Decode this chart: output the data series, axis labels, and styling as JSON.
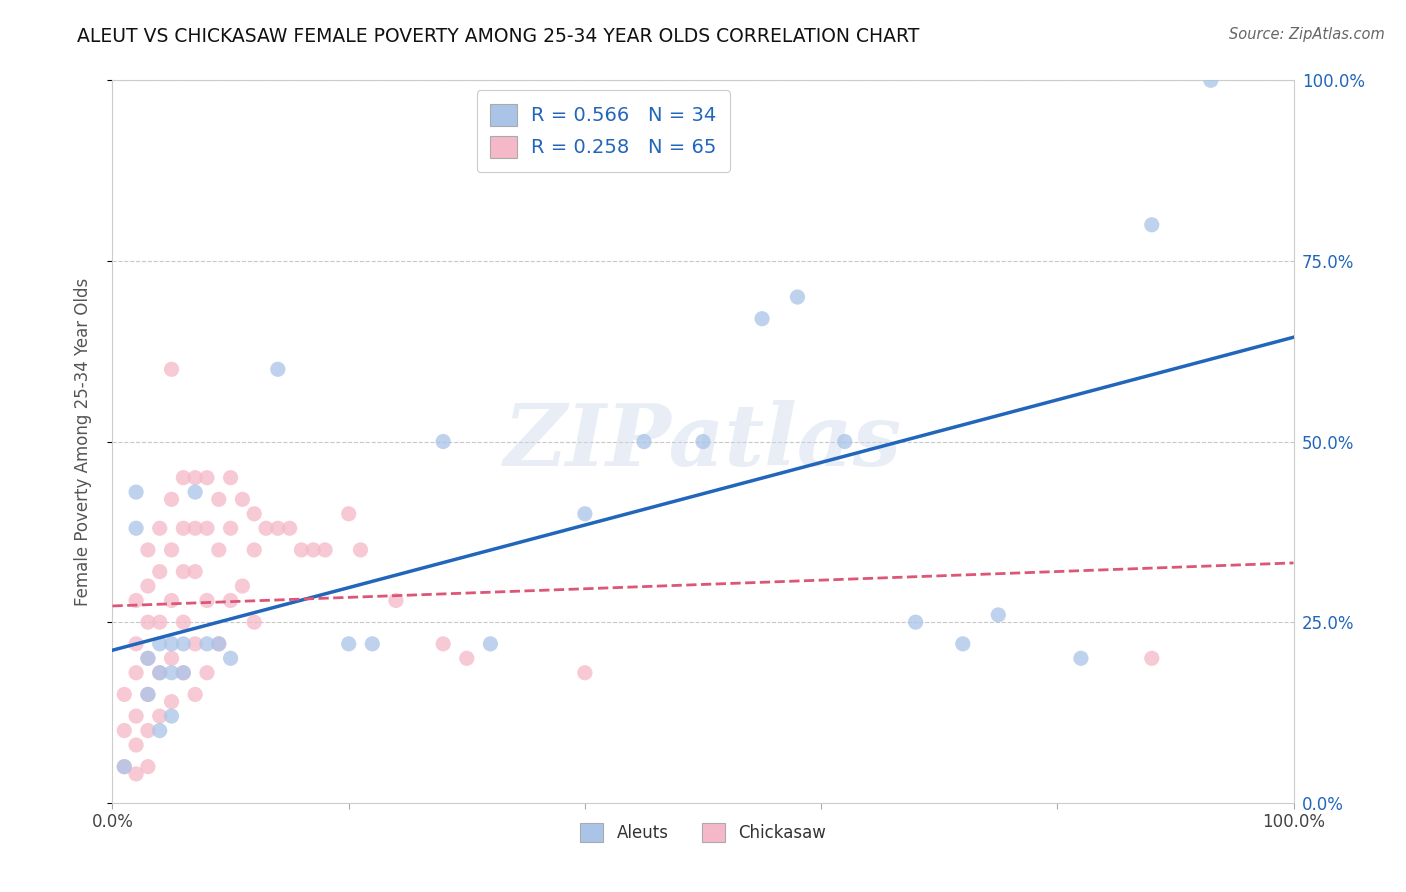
{
  "title": "ALEUT VS CHICKASAW FEMALE POVERTY AMONG 25-34 YEAR OLDS CORRELATION CHART",
  "source": "Source: ZipAtlas.com",
  "ylabel": "Female Poverty Among 25-34 Year Olds",
  "xlim": [
    0.0,
    1.0
  ],
  "ylim": [
    0.0,
    1.0
  ],
  "aleuts_R": 0.566,
  "aleuts_N": 34,
  "chickasaw_R": 0.258,
  "chickasaw_N": 65,
  "aleuts_color": "#aac4e8",
  "chickasaw_color": "#f5b8c8",
  "aleuts_line_color": "#2266bb",
  "chickasaw_line_color": "#dd5577",
  "background_color": "#ffffff",
  "grid_color": "#c8c8c8",
  "aleuts_x": [
    0.01,
    0.02,
    0.02,
    0.03,
    0.03,
    0.04,
    0.04,
    0.04,
    0.05,
    0.05,
    0.05,
    0.06,
    0.06,
    0.07,
    0.08,
    0.09,
    0.1,
    0.14,
    0.2,
    0.22,
    0.28,
    0.32,
    0.4,
    0.45,
    0.5,
    0.55,
    0.58,
    0.62,
    0.68,
    0.72,
    0.75,
    0.82,
    0.88,
    0.93
  ],
  "aleuts_y": [
    0.05,
    0.43,
    0.38,
    0.2,
    0.15,
    0.22,
    0.18,
    0.1,
    0.22,
    0.18,
    0.12,
    0.22,
    0.18,
    0.43,
    0.22,
    0.22,
    0.2,
    0.6,
    0.22,
    0.22,
    0.5,
    0.22,
    0.4,
    0.5,
    0.5,
    0.67,
    0.7,
    0.5,
    0.25,
    0.22,
    0.26,
    0.2,
    0.8,
    1.0
  ],
  "chickasaw_x": [
    0.01,
    0.01,
    0.01,
    0.02,
    0.02,
    0.02,
    0.02,
    0.02,
    0.02,
    0.03,
    0.03,
    0.03,
    0.03,
    0.03,
    0.03,
    0.03,
    0.04,
    0.04,
    0.04,
    0.04,
    0.04,
    0.05,
    0.05,
    0.05,
    0.05,
    0.05,
    0.05,
    0.06,
    0.06,
    0.06,
    0.06,
    0.06,
    0.07,
    0.07,
    0.07,
    0.07,
    0.07,
    0.08,
    0.08,
    0.08,
    0.08,
    0.09,
    0.09,
    0.09,
    0.1,
    0.1,
    0.1,
    0.11,
    0.11,
    0.12,
    0.12,
    0.12,
    0.13,
    0.14,
    0.15,
    0.16,
    0.17,
    0.18,
    0.2,
    0.21,
    0.24,
    0.28,
    0.3,
    0.4,
    0.88
  ],
  "chickasaw_y": [
    0.15,
    0.1,
    0.05,
    0.28,
    0.22,
    0.18,
    0.12,
    0.08,
    0.04,
    0.35,
    0.3,
    0.25,
    0.2,
    0.15,
    0.1,
    0.05,
    0.38,
    0.32,
    0.25,
    0.18,
    0.12,
    0.6,
    0.42,
    0.35,
    0.28,
    0.2,
    0.14,
    0.45,
    0.38,
    0.32,
    0.25,
    0.18,
    0.45,
    0.38,
    0.32,
    0.22,
    0.15,
    0.45,
    0.38,
    0.28,
    0.18,
    0.42,
    0.35,
    0.22,
    0.45,
    0.38,
    0.28,
    0.42,
    0.3,
    0.4,
    0.35,
    0.25,
    0.38,
    0.38,
    0.38,
    0.35,
    0.35,
    0.35,
    0.4,
    0.35,
    0.28,
    0.22,
    0.2,
    0.18,
    0.2
  ]
}
